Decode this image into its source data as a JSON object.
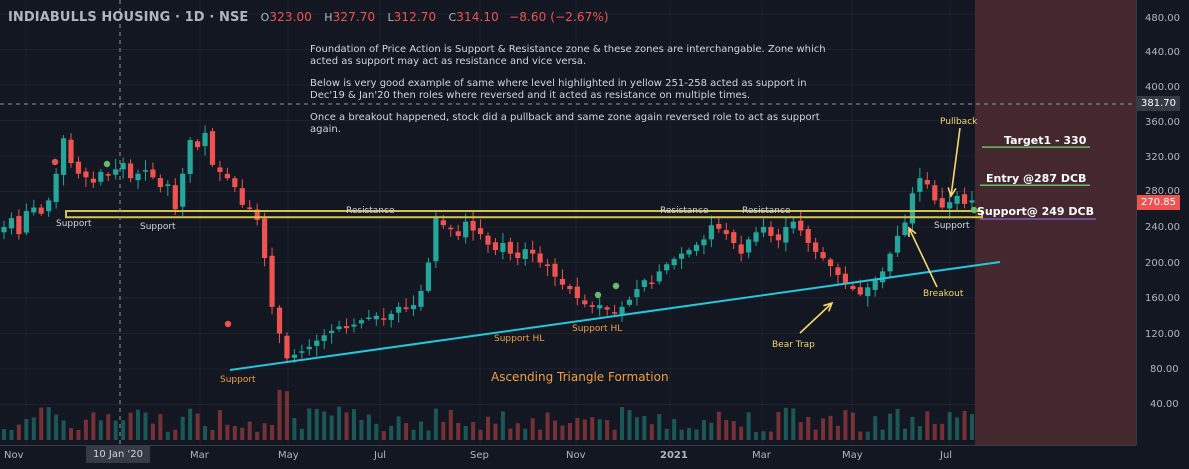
{
  "header": {
    "symbol": "INDIABULLS HOUSING · 1D · NSE",
    "open_label": "O",
    "open": "323.00",
    "high_label": "H",
    "high": "327.70",
    "low_label": "L",
    "low": "312.70",
    "close_label": "C",
    "close": "314.10",
    "change": "−8.60 (−2.67%)"
  },
  "notes": [
    "Foundation of Price Action is Support & Resistance zone & these zones are interchangable. Zone which acted as support may act as resistance and vice versa.",
    "Below is very good example of same where level highlighted in yellow 251-258 acted as support in Dec'19 & Jan'20 then roles where reversed and it acted as resistance on multiple times.",
    "Once a breakout happened, stock did a pullback and same zone again reversed role to act as support again."
  ],
  "price_axis": {
    "ticks": [
      "480.00",
      "440.00",
      "400.00",
      "360.00",
      "320.00",
      "280.00",
      "240.00",
      "200.00",
      "160.00",
      "120.00",
      "80.00",
      "40.00"
    ],
    "crosshair_price": "381.70",
    "last_price": "270.85"
  },
  "time_axis": {
    "labels": [
      "Nov",
      "Mar",
      "May",
      "Jul",
      "Sep",
      "Nov",
      "2021",
      "Mar",
      "May",
      "Jul"
    ],
    "crosshair_date": "10 Jan '20"
  },
  "annotations": {
    "support_1": "Support",
    "support_2": "Support",
    "support_3": "Support",
    "support_4": "Support",
    "resistance_1": "Resistance",
    "resistance_2": "Resistance",
    "resistance_3": "Resistance",
    "support_hl_1": "Support HL",
    "support_hl_2": "Support HL",
    "bear_trap": "Bear Trap",
    "breakout": "Breakout",
    "pullback": "Pullback",
    "pattern": "Ascending Triangle Formation",
    "target1": "Target1 - 330",
    "entry": "Entry @287 DCB",
    "support_level": "Support@ 249 DCB"
  },
  "colors": {
    "up": "#26a69a",
    "down": "#ef5350",
    "zone": "#d4c24a",
    "trendline": "#26c6da",
    "highlight_box": "#4a2a30"
  },
  "chart_data": {
    "type": "candlestick",
    "ylim": [
      0,
      490
    ],
    "support_zone": [
      251,
      258
    ],
    "trendline_points": [
      [
        "Mar 2020",
        82
      ],
      [
        "Aug 2021",
        202
      ]
    ],
    "levels": {
      "target": 330,
      "entry": 287,
      "stop_support": 249
    },
    "series_close": [
      240,
      250,
      232,
      258,
      262,
      255,
      270,
      300,
      340,
      312,
      300,
      296,
      290,
      302,
      298,
      305,
      312,
      295,
      300,
      304,
      296,
      285,
      288,
      260,
      300,
      338,
      330,
      346,
      310,
      302,
      295,
      285,
      265,
      262,
      248,
      205,
      150,
      120,
      92,
      96,
      100,
      105,
      112,
      118,
      123,
      128,
      126,
      130,
      135,
      138,
      140,
      136,
      142,
      150,
      148,
      152,
      168,
      200,
      250,
      242,
      238,
      230,
      246,
      236,
      232,
      220,
      214,
      222,
      210,
      205,
      215,
      210,
      200,
      196,
      184,
      175,
      170,
      160,
      153,
      150,
      152,
      147,
      143,
      150,
      158,
      170,
      180,
      176,
      190,
      198,
      204,
      210,
      214,
      220,
      226,
      242,
      238,
      232,
      222,
      210,
      226,
      234,
      240,
      230,
      225,
      240,
      246,
      236,
      222,
      212,
      205,
      196,
      186,
      176,
      170,
      164,
      172,
      180,
      190,
      210,
      230,
      245,
      278,
      295,
      288,
      270,
      262,
      268,
      275,
      266,
      270
    ]
  }
}
